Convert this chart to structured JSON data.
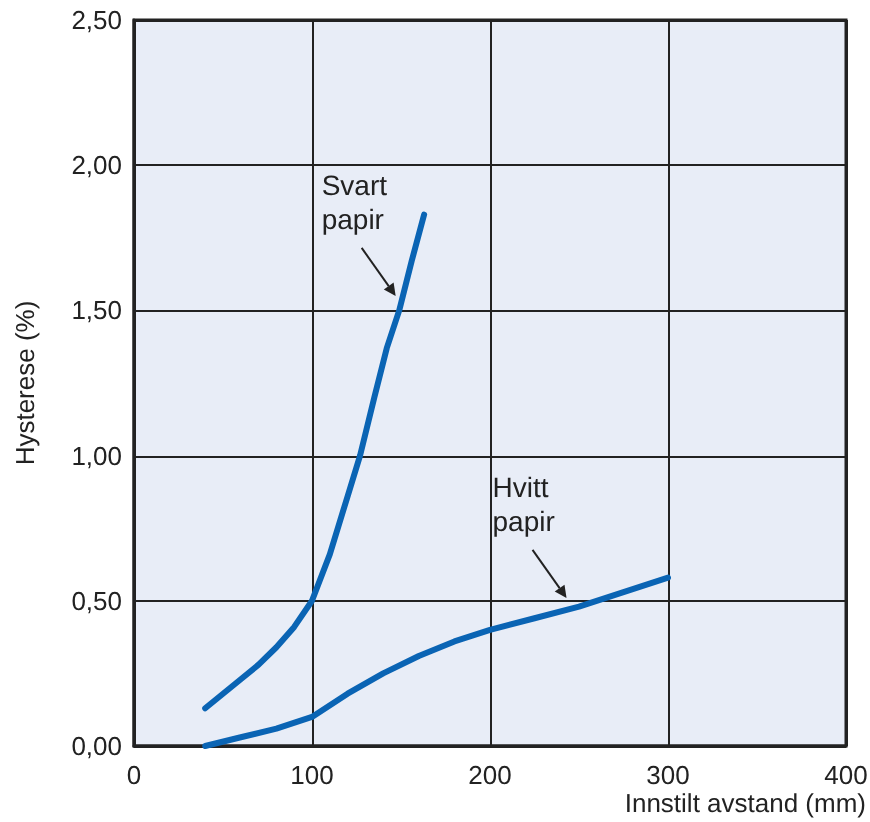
{
  "chart_data": {
    "type": "line",
    "xlabel": "Innstilt avstand (mm)",
    "ylabel": "Hysterese (%)",
    "xlim": [
      0,
      400
    ],
    "xticks": [
      0,
      100,
      200,
      300,
      400
    ],
    "ylim": [
      0,
      2.5
    ],
    "yticks": [
      {
        "value": 0,
        "label": "0,00"
      },
      {
        "value": 0.5,
        "label": "0,50"
      },
      {
        "value": 1,
        "label": "1,00"
      },
      {
        "value": 1.5,
        "label": "1,50"
      },
      {
        "value": 2,
        "label": "2,00"
      },
      {
        "value": 2.5,
        "label": "2,50"
      }
    ],
    "grid": true,
    "marker": "none",
    "line_style": "solid",
    "series": [
      {
        "color": "#0a64b4",
        "x": [
          40,
          50,
          60,
          70,
          80,
          90,
          100,
          110,
          120,
          127,
          135,
          142,
          149,
          156,
          163
        ],
        "values": [
          0.13,
          0.18,
          0.23,
          0.28,
          0.34,
          0.41,
          0.5,
          0.66,
          0.86,
          1.0,
          1.2,
          1.37,
          1.5,
          1.67,
          1.83
        ]
      },
      {
        "color": "#0a64b4",
        "x": [
          40,
          60,
          80,
          100,
          120,
          140,
          160,
          180,
          200,
          225,
          250,
          275,
          300
        ],
        "values": [
          0.0,
          0.03,
          0.06,
          0.1,
          0.18,
          0.25,
          0.31,
          0.36,
          0.4,
          0.44,
          0.48,
          0.53,
          0.58
        ]
      }
    ],
    "annotations": [
      {
        "text": "Svart\npapir",
        "x": 147,
        "y": 1.55
      },
      {
        "text": "Hvitt\npapir",
        "x": 243,
        "y": 0.51
      }
    ]
  }
}
